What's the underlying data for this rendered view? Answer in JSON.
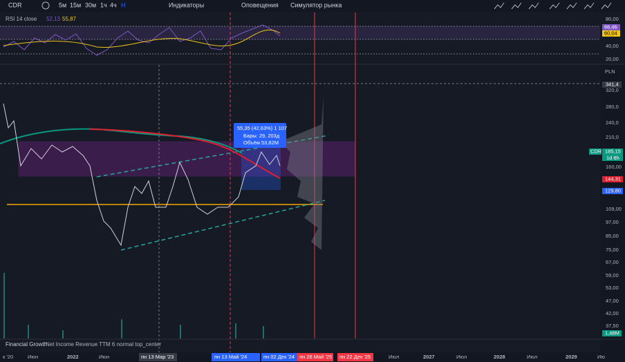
{
  "toolbar": {
    "symbol": "CDR",
    "intervals": [
      "5м",
      "15м",
      "30м",
      "1ч",
      "4ч",
      "Н"
    ],
    "indicators": "Индикаторы",
    "alerts": "Оповещения",
    "replay": "Симулятор рынка"
  },
  "rsi": {
    "label": "RSI 14 close",
    "value1": "52,13",
    "value2": "55,87",
    "axis": [
      "80,00",
      "60,00",
      "40,00",
      "20,00"
    ],
    "badge_purple": "66,46",
    "badge_yellow": "60,04"
  },
  "price_axis": {
    "currency": "PLN",
    "badge_top": "341,4",
    "labels": [
      "320,0",
      "280,0",
      "240,0",
      "210,0",
      "160,00",
      "109,00",
      "97,00",
      "85,00",
      "75,00",
      "67,00",
      "59,00",
      "53,00",
      "47,00",
      "42,00",
      "37,50"
    ],
    "last_price": "185,15",
    "countdown": "1d 8h",
    "badge_red": "144,31",
    "badge_blue": "129,80",
    "badge_volume": "1,48M"
  },
  "symbol_badge": "CDR",
  "tooltip": {
    "line1": "55,35 (42,63%) 1 107",
    "line2": "Бары: 29, 203д",
    "line3": "Объём 53,82M"
  },
  "bottom_pane": {
    "label": "Financial Growth",
    "params": "Net Income Revenue TTM 6 normal top_center"
  },
  "time_axis": {
    "labels": [
      "к '20",
      "Июн",
      "2022",
      "Июн",
      "пн 13 Мар '23",
      "пн 13 Май '24",
      "пн 02 Дек '24",
      "пн 26 Май '25",
      "пн 22 Дек '25",
      "Июл",
      "2027",
      "Июл",
      "2028",
      "Июл",
      "2029",
      "Ию"
    ]
  }
}
